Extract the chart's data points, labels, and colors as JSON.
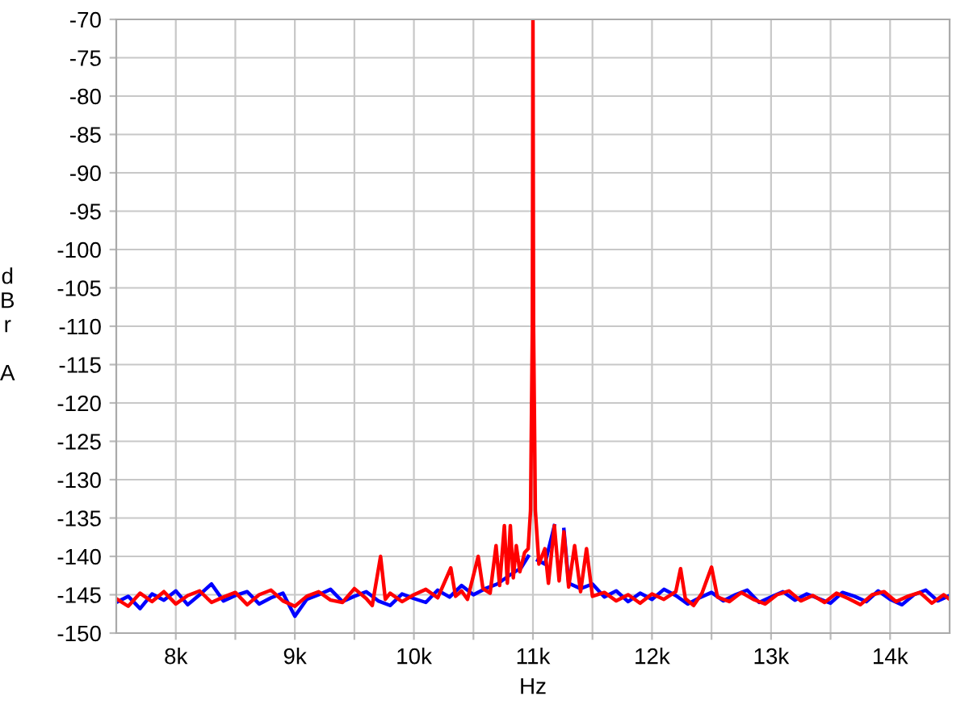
{
  "chart_data": {
    "type": "line",
    "xlabel": "Hz",
    "ylabel": "dBr A",
    "xlim": [
      7500,
      14500
    ],
    "ylim": [
      -150,
      -70
    ],
    "xticks": [
      {
        "value": 8000,
        "label": "8k"
      },
      {
        "value": 8500,
        "label": null
      },
      {
        "value": 9000,
        "label": "9k"
      },
      {
        "value": 9500,
        "label": null
      },
      {
        "value": 10000,
        "label": "10k"
      },
      {
        "value": 10500,
        "label": null
      },
      {
        "value": 11000,
        "label": "11k"
      },
      {
        "value": 11500,
        "label": null
      },
      {
        "value": 12000,
        "label": "12k"
      },
      {
        "value": 12500,
        "label": null
      },
      {
        "value": 13000,
        "label": "13k"
      },
      {
        "value": 13500,
        "label": null
      },
      {
        "value": 14000,
        "label": "14k"
      }
    ],
    "yticks": [
      -150,
      -145,
      -140,
      -135,
      -130,
      -125,
      -120,
      -115,
      -110,
      -105,
      -100,
      -95,
      -90,
      -85,
      -80,
      -75,
      -70
    ],
    "grid": true,
    "marker": "none",
    "line_style": "solid",
    "series": [
      {
        "color": "#0000ff",
        "x": [
          7500,
          7600,
          7700,
          7800,
          7900,
          8000,
          8100,
          8200,
          8300,
          8400,
          8500,
          8600,
          8700,
          8800,
          8900,
          9000,
          9100,
          9200,
          9300,
          9400,
          9500,
          9600,
          9700,
          9800,
          9900,
          10000,
          10100,
          10200,
          10300,
          10400,
          10500,
          10600,
          10700,
          10800,
          10900,
          10960,
          10985,
          11000,
          11015,
          11040,
          11100,
          11180,
          11220,
          11260,
          11300,
          11400,
          11500,
          11600,
          11700,
          11800,
          11900,
          12000,
          12100,
          12200,
          12300,
          12400,
          12500,
          12600,
          12700,
          12800,
          12900,
          13000,
          13100,
          13200,
          13300,
          13400,
          13500,
          13600,
          13700,
          13800,
          13900,
          14000,
          14100,
          14200,
          14300,
          14400,
          14500
        ],
        "values": [
          -146.0,
          -145.2,
          -146.8,
          -144.9,
          -145.7,
          -144.5,
          -146.3,
          -145.0,
          -143.6,
          -145.8,
          -145.1,
          -144.6,
          -146.2,
          -145.4,
          -144.8,
          -147.8,
          -145.6,
          -145.0,
          -144.3,
          -145.9,
          -145.2,
          -144.6,
          -145.8,
          -146.4,
          -144.9,
          -145.5,
          -146.0,
          -144.4,
          -145.3,
          -143.8,
          -145.0,
          -144.2,
          -143.6,
          -142.5,
          -141.5,
          -140.0,
          null,
          null,
          null,
          -140.5,
          -141.0,
          -136.0,
          null,
          -136.5,
          -143.5,
          -144.2,
          -143.6,
          -145.3,
          -144.5,
          -145.9,
          -144.8,
          -145.6,
          -144.3,
          -145.1,
          -146.2,
          -145.4,
          -144.7,
          -145.8,
          -145.0,
          -144.4,
          -146.0,
          -145.3,
          -144.6,
          -145.7,
          -144.9,
          -145.5,
          -146.1,
          -144.7,
          -145.2,
          -145.9,
          -144.5,
          -145.6,
          -146.3,
          -145.0,
          -144.4,
          -145.8,
          -145.1
        ]
      },
      {
        "color": "#ff0000",
        "x": [
          7500,
          7600,
          7700,
          7800,
          7900,
          8000,
          8100,
          8200,
          8300,
          8400,
          8500,
          8600,
          8700,
          8800,
          8900,
          9000,
          9100,
          9200,
          9300,
          9400,
          9500,
          9600,
          9650,
          9720,
          9760,
          9800,
          9900,
          10000,
          10100,
          10200,
          10310,
          10350,
          10400,
          10450,
          10540,
          10580,
          10640,
          10690,
          10720,
          10760,
          10785,
          10810,
          10835,
          10860,
          10890,
          10930,
          10960,
          10980,
          10995,
          11000,
          11005,
          11020,
          11050,
          11100,
          11130,
          11180,
          11220,
          11260,
          11300,
          11350,
          11400,
          11450,
          11500,
          11600,
          11700,
          11800,
          11900,
          12000,
          12100,
          12200,
          12240,
          12280,
          12350,
          12420,
          12500,
          12550,
          12650,
          12750,
          12850,
          12950,
          13050,
          13150,
          13250,
          13350,
          13450,
          13550,
          13650,
          13750,
          13850,
          13950,
          14050,
          14150,
          14250,
          14350,
          14450,
          14500
        ],
        "values": [
          -145.5,
          -146.5,
          -144.8,
          -145.9,
          -144.6,
          -146.2,
          -145.1,
          -144.5,
          -146.0,
          -145.3,
          -144.7,
          -146.3,
          -145.0,
          -144.4,
          -145.8,
          -146.5,
          -145.2,
          -144.6,
          -145.7,
          -146.0,
          -144.2,
          -145.5,
          -146.4,
          -140.0,
          -145.6,
          -144.8,
          -145.9,
          -145.0,
          -144.3,
          -145.4,
          -141.5,
          -145.2,
          -144.5,
          -145.6,
          -140.0,
          -144.2,
          -144.8,
          -138.6,
          -143.8,
          -136.0,
          -143.5,
          -136.0,
          -142.8,
          -138.6,
          -142.0,
          -139.5,
          -139.0,
          -134,
          -110,
          -70,
          -110,
          -134,
          -141,
          -139.0,
          -143.5,
          -136.0,
          -143.2,
          -136.8,
          -144.0,
          -138.6,
          -144.6,
          -139.0,
          -145.2,
          -144.7,
          -145.8,
          -145.0,
          -146.1,
          -144.9,
          -145.6,
          -144.6,
          -141.6,
          -145.5,
          -146.4,
          -144.8,
          -141.4,
          -145.3,
          -145.9,
          -144.7,
          -145.6,
          -146.2,
          -145.0,
          -144.5,
          -145.8,
          -145.1,
          -146.0,
          -144.8,
          -145.5,
          -146.3,
          -145.0,
          -144.6,
          -145.9,
          -145.2,
          -144.7,
          -146.1,
          -145.0,
          -145.6
        ]
      }
    ]
  }
}
